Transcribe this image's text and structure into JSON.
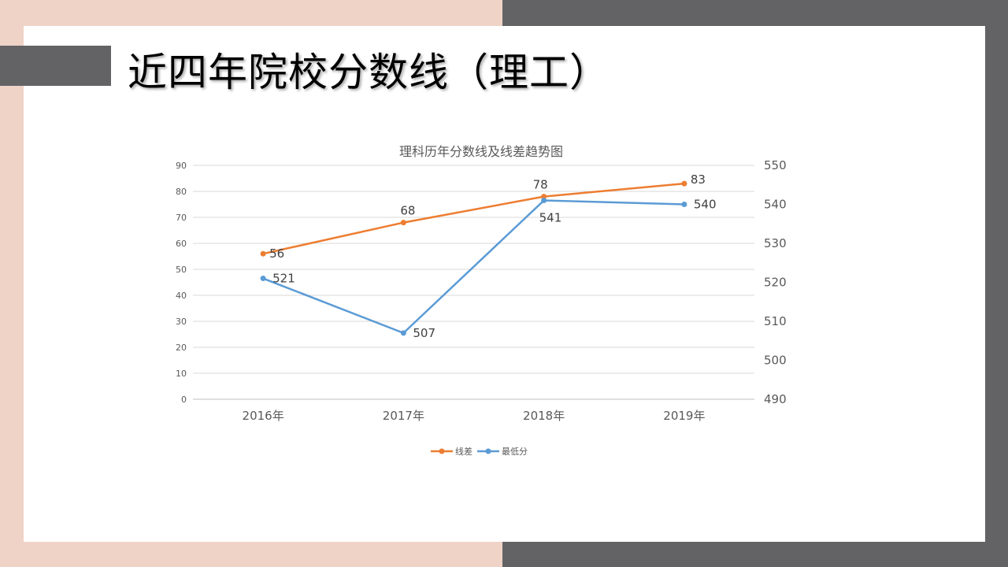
{
  "slide": {
    "title": "近四年院校分数线（理工）"
  },
  "colors": {
    "peach": "#f0d3c7",
    "dark_gray": "#636366",
    "orange": "#ed7d31",
    "blue": "#5b9bd5"
  },
  "chart_data": {
    "type": "line",
    "title": "理科历年分数线及线差趋势图",
    "categories": [
      "2016年",
      "2017年",
      "2018年",
      "2019年"
    ],
    "series": [
      {
        "name": "线差",
        "axis": "left",
        "color": "#ed7d31",
        "values": [
          56,
          68,
          78,
          83
        ]
      },
      {
        "name": "最低分",
        "axis": "right",
        "color": "#5b9bd5",
        "values": [
          521,
          507,
          541,
          540
        ]
      }
    ],
    "y_left": {
      "range": [
        0,
        90
      ],
      "ticks": [
        "0",
        "10",
        "20",
        "30",
        "40",
        "50",
        "60",
        "70",
        "80",
        "90"
      ]
    },
    "y_right": {
      "range": [
        490,
        550
      ],
      "ticks": [
        "490",
        "500",
        "510",
        "520",
        "530",
        "540",
        "550"
      ]
    },
    "grid": true,
    "legend": "bottom",
    "data_labels": true
  }
}
